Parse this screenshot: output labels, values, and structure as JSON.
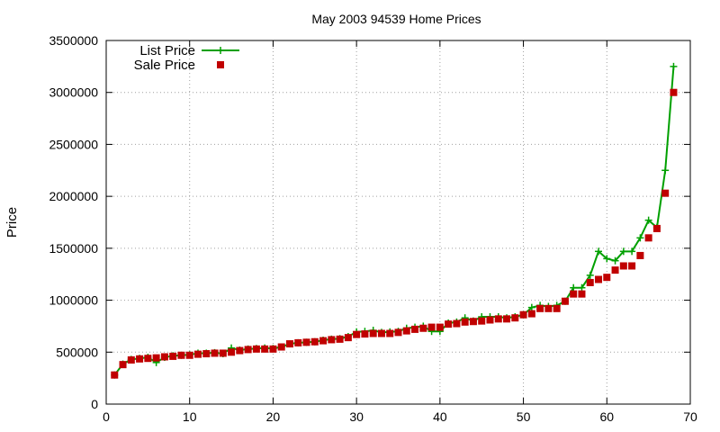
{
  "chart_data": {
    "type": "line",
    "title": "May 2003 94539 Home Prices",
    "xlabel": "",
    "ylabel": "Price",
    "xlim": [
      0,
      70
    ],
    "ylim": [
      0,
      3500000
    ],
    "xticks": [
      0,
      10,
      20,
      30,
      40,
      50,
      60,
      70
    ],
    "yticks": [
      0,
      500000,
      1000000,
      1500000,
      2000000,
      2500000,
      3000000,
      3500000
    ],
    "grid": true,
    "legend_position": "top-left",
    "series": [
      {
        "name": "List Price",
        "style": "line-with-plus-markers",
        "color": "#00a000",
        "x": [
          1,
          2,
          3,
          4,
          5,
          6,
          7,
          8,
          9,
          10,
          11,
          12,
          13,
          14,
          15,
          16,
          17,
          18,
          19,
          20,
          21,
          22,
          23,
          24,
          25,
          26,
          27,
          28,
          29,
          30,
          31,
          32,
          33,
          34,
          35,
          36,
          37,
          38,
          39,
          40,
          41,
          42,
          43,
          44,
          45,
          46,
          47,
          48,
          49,
          50,
          51,
          52,
          53,
          54,
          55,
          56,
          57,
          58,
          59,
          60,
          61,
          62,
          63,
          64,
          65,
          66,
          67,
          68
        ],
        "y": [
          280000,
          385000,
          430000,
          440000,
          450000,
          400000,
          450000,
          465000,
          470000,
          475000,
          490000,
          490000,
          495000,
          485000,
          540000,
          520000,
          530000,
          535000,
          540000,
          535000,
          550000,
          580000,
          590000,
          595000,
          600000,
          615000,
          625000,
          630000,
          650000,
          695000,
          700000,
          710000,
          690000,
          695000,
          700000,
          730000,
          740000,
          750000,
          700000,
          700000,
          780000,
          790000,
          830000,
          800000,
          840000,
          840000,
          840000,
          830000,
          840000,
          860000,
          930000,
          950000,
          940000,
          950000,
          990000,
          1120000,
          1120000,
          1240000,
          1470000,
          1400000,
          1380000,
          1470000,
          1470000,
          1600000,
          1770000,
          1700000,
          2250000,
          3250000
        ]
      },
      {
        "name": "Sale Price",
        "style": "square-markers",
        "color": "#c00000",
        "x": [
          1,
          2,
          3,
          4,
          5,
          6,
          7,
          8,
          9,
          10,
          11,
          12,
          13,
          14,
          15,
          16,
          17,
          18,
          19,
          20,
          21,
          22,
          23,
          24,
          25,
          26,
          27,
          28,
          29,
          30,
          31,
          32,
          33,
          34,
          35,
          36,
          37,
          38,
          39,
          40,
          41,
          42,
          43,
          44,
          45,
          46,
          47,
          48,
          49,
          50,
          51,
          52,
          53,
          54,
          55,
          56,
          57,
          58,
          59,
          60,
          61,
          62,
          63,
          64,
          65,
          66,
          67,
          68
        ],
        "y": [
          280000,
          380000,
          425000,
          435000,
          440000,
          445000,
          455000,
          460000,
          470000,
          470000,
          480000,
          485000,
          490000,
          490000,
          500000,
          515000,
          525000,
          530000,
          530000,
          530000,
          550000,
          580000,
          590000,
          595000,
          600000,
          610000,
          620000,
          625000,
          640000,
          670000,
          675000,
          680000,
          680000,
          680000,
          690000,
          705000,
          720000,
          730000,
          740000,
          740000,
          770000,
          775000,
          790000,
          795000,
          800000,
          810000,
          820000,
          820000,
          830000,
          860000,
          870000,
          920000,
          920000,
          920000,
          990000,
          1060000,
          1060000,
          1170000,
          1200000,
          1220000,
          1290000,
          1330000,
          1330000,
          1430000,
          1600000,
          1690000,
          2030000,
          3000000
        ]
      }
    ]
  }
}
